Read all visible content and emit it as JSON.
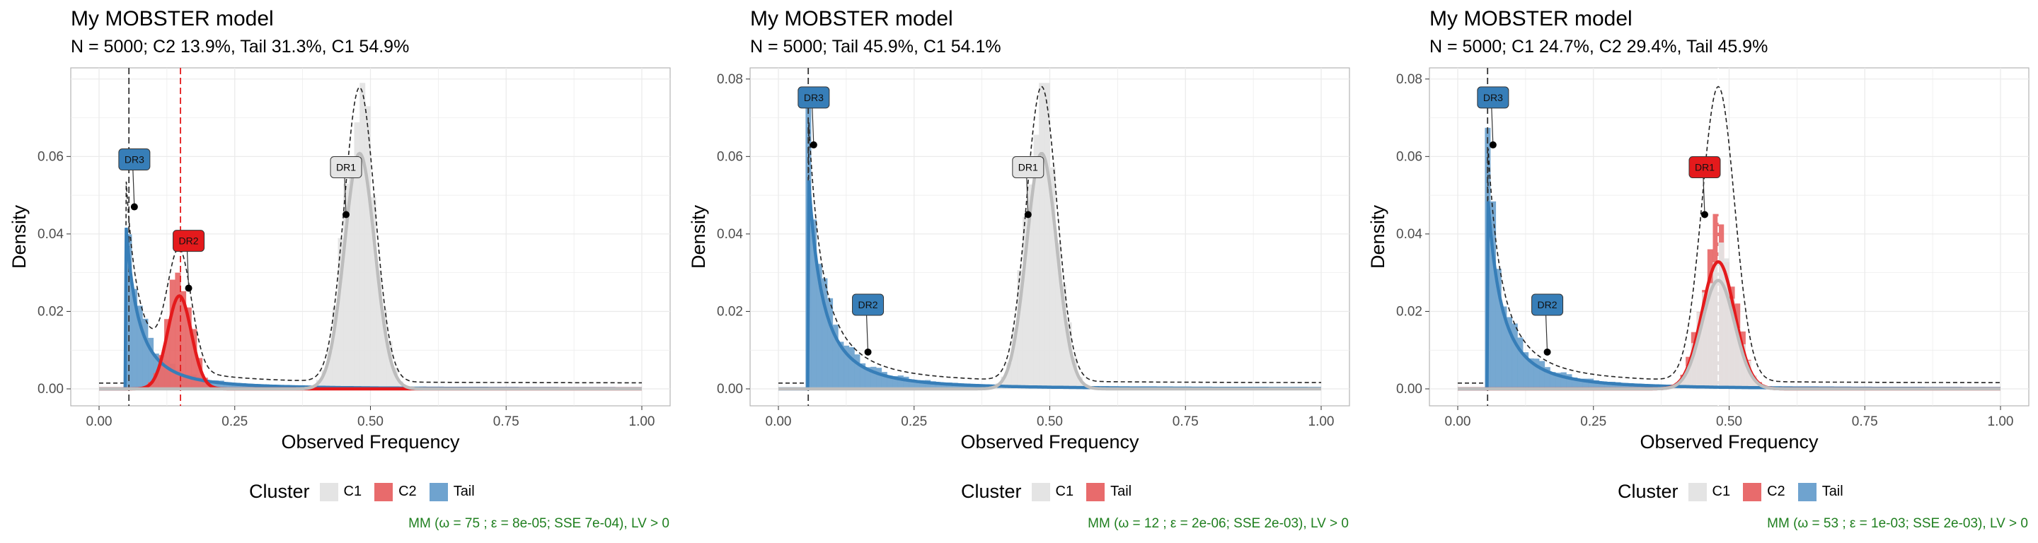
{
  "colors": {
    "C1": "#e4e4e4",
    "C2": "#e41a1c",
    "Tail": "#377eb8",
    "caption": "#1f7f1f",
    "grid": "#ebebeb"
  },
  "chart_data": [
    {
      "type": "histogram-density",
      "title": "My MOBSTER model",
      "subtitle": "N = 5000; C2 13.9%, Tail 31.3%, C1 54.9%",
      "xlabel": "Observed Frequency",
      "ylabel": "Density",
      "xlim": [
        0,
        1
      ],
      "ylim": [
        0,
        0.08
      ],
      "xticks": [
        "0.00",
        "0.25",
        "0.50",
        "0.75",
        "1.00"
      ],
      "yticks": [
        "0.00",
        "0.02",
        "0.04",
        "0.06"
      ],
      "yticks_values": [
        0,
        0.02,
        0.04,
        0.06
      ],
      "grid": true,
      "legend": {
        "title": "Cluster",
        "entries": [
          "C1",
          "C2",
          "Tail"
        ],
        "position": "bottom"
      },
      "caption": "MM (ω = 75 ; ε = 8e-05; SSE 7e-04), LV > 0",
      "vlines": [
        {
          "x": 0.055,
          "style": "dashed",
          "color": "#333333"
        },
        {
          "x": 0.15,
          "style": "dashed",
          "color": "#e41a1c"
        }
      ],
      "series": [
        {
          "name": "Tail",
          "kind": "pareto",
          "xmin": 0.05,
          "peak": 0.052,
          "weight": 0.313
        },
        {
          "name": "C2",
          "kind": "beta",
          "mean": 0.148,
          "sd": 0.022,
          "peak": 0.03,
          "weight": 0.139
        },
        {
          "name": "C1",
          "kind": "beta",
          "mean": 0.48,
          "sd": 0.028,
          "peak": 0.076,
          "weight": 0.549
        }
      ],
      "driver_labels": [
        {
          "label": "DR3",
          "x": 0.065,
          "y": 0.047,
          "cluster": "Tail"
        },
        {
          "label": "DR2",
          "x": 0.165,
          "y": 0.026,
          "cluster": "C2"
        },
        {
          "label": "DR1",
          "x": 0.455,
          "y": 0.045,
          "cluster": "C1"
        }
      ]
    },
    {
      "type": "histogram-density",
      "title": "My MOBSTER model",
      "subtitle": "N = 5000; Tail 45.9%, C1 54.1%",
      "xlabel": "Observed Frequency",
      "ylabel": "Density",
      "xlim": [
        0,
        1
      ],
      "ylim": [
        0,
        0.08
      ],
      "xticks": [
        "0.00",
        "0.25",
        "0.50",
        "0.75",
        "1.00"
      ],
      "yticks": [
        "0.00",
        "0.02",
        "0.04",
        "0.06",
        "0.08"
      ],
      "yticks_values": [
        0,
        0.02,
        0.04,
        0.06,
        0.08
      ],
      "grid": true,
      "legend": {
        "title": "Cluster",
        "entries": [
          "C1",
          "Tail"
        ],
        "position": "bottom"
      },
      "caption": "MM (ω = 12 ; ε = 2e-06; SSE 2e-03), LV > 0",
      "vlines": [
        {
          "x": 0.055,
          "style": "dashed",
          "color": "#333333"
        }
      ],
      "series": [
        {
          "name": "Tail",
          "kind": "pareto",
          "xmin": 0.055,
          "peak": 0.07,
          "weight": 0.459
        },
        {
          "name": "C1",
          "kind": "beta",
          "mean": 0.485,
          "sd": 0.028,
          "peak": 0.076,
          "weight": 0.541
        }
      ],
      "driver_labels": [
        {
          "label": "DR3",
          "x": 0.065,
          "y": 0.063,
          "cluster": "Tail"
        },
        {
          "label": "DR2",
          "x": 0.165,
          "y": 0.0095,
          "cluster": "Tail"
        },
        {
          "label": "DR1",
          "x": 0.46,
          "y": 0.045,
          "cluster": "C1"
        }
      ]
    },
    {
      "type": "histogram-density",
      "title": "My MOBSTER model",
      "subtitle": "N = 5000; C1 24.7%, C2 29.4%, Tail 45.9%",
      "xlabel": "Observed Frequency",
      "ylabel": "Density",
      "xlim": [
        0,
        1
      ],
      "ylim": [
        0,
        0.08
      ],
      "xticks": [
        "0.00",
        "0.25",
        "0.50",
        "0.75",
        "1.00"
      ],
      "yticks": [
        "0.00",
        "0.02",
        "0.04",
        "0.06",
        "0.08"
      ],
      "yticks_values": [
        0,
        0.02,
        0.04,
        0.06,
        0.08
      ],
      "grid": true,
      "legend": {
        "title": "Cluster",
        "entries": [
          "C1",
          "C2",
          "Tail"
        ],
        "position": "bottom"
      },
      "caption": "MM (ω = 53 ; ε = 1e-03; SSE 2e-03), LV > 0",
      "vlines": [
        {
          "x": 0.055,
          "style": "dashed",
          "color": "#333333"
        },
        {
          "x": 0.48,
          "style": "dashed",
          "color": "#ffffff"
        }
      ],
      "series": [
        {
          "name": "Tail",
          "kind": "pareto",
          "xmin": 0.055,
          "peak": 0.063,
          "weight": 0.459
        },
        {
          "name": "C2",
          "kind": "beta",
          "mean": 0.48,
          "sd": 0.03,
          "peak": 0.041,
          "weight": 0.294
        },
        {
          "name": "C1",
          "kind": "beta",
          "mean": 0.48,
          "sd": 0.03,
          "peak": 0.035,
          "weight": 0.247
        }
      ],
      "driver_labels": [
        {
          "label": "DR3",
          "x": 0.065,
          "y": 0.063,
          "cluster": "Tail"
        },
        {
          "label": "DR2",
          "x": 0.165,
          "y": 0.0095,
          "cluster": "Tail"
        },
        {
          "label": "DR1",
          "x": 0.455,
          "y": 0.045,
          "cluster": "C2"
        }
      ]
    }
  ]
}
